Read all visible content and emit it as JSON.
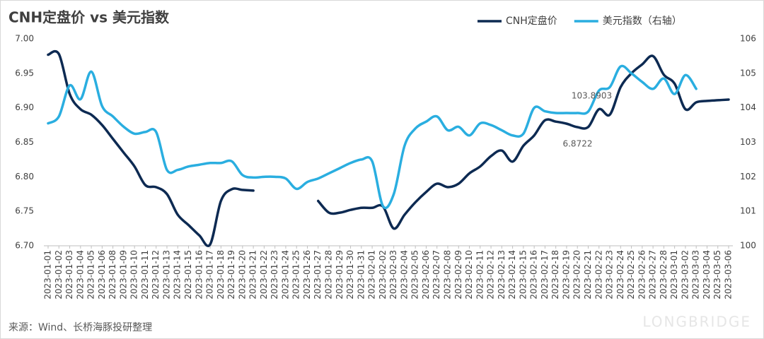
{
  "chart_data": {
    "type": "line",
    "title": "CNH定盘价 vs 美元指数",
    "source": "来源：Wind、长桥海豚投研整理",
    "watermark": "LONGBRIDGE",
    "categories": [
      "2023-01-01",
      "2023-01-02",
      "2023-01-03",
      "2023-01-04",
      "2023-01-05",
      "2023-01-06",
      "2023-01-08",
      "2023-01-09",
      "2023-01-10",
      "2023-01-11",
      "2023-01-12",
      "2023-01-13",
      "2023-01-14",
      "2023-01-15",
      "2023-01-16",
      "2023-01-17",
      "2023-01-18",
      "2023-01-19",
      "2023-01-20",
      "2023-01-21",
      "2023-01-22",
      "2023-01-23",
      "2023-01-24",
      "2023-01-25",
      "2023-01-26",
      "2023-01-27",
      "2023-01-28",
      "2023-01-29",
      "2023-01-30",
      "2023-01-31",
      "2023-02-01",
      "2023-02-02",
      "2023-02-03",
      "2023-02-04",
      "2023-02-05",
      "2023-02-06",
      "2023-02-07",
      "2023-02-08",
      "2023-02-09",
      "2023-02-10",
      "2023-02-11",
      "2023-02-12",
      "2023-02-13",
      "2023-02-14",
      "2023-02-15",
      "2023-02-16",
      "2023-02-17",
      "2023-02-18",
      "2023-02-19",
      "2023-02-20",
      "2023-02-21",
      "2023-02-22",
      "2023-02-23",
      "2023-02-24",
      "2023-02-25",
      "2023-02-26",
      "2023-02-27",
      "2023-02-28",
      "2023-03-01",
      "2023-03-02",
      "2023-03-03",
      "2023-03-04",
      "2023-03-05",
      "2023-03-06"
    ],
    "series": [
      {
        "name": "CNH定盘价",
        "color": "#0d2a52",
        "labels_at": [
          50
        ],
        "values": [
          6.977,
          6.978,
          6.92,
          6.898,
          6.89,
          6.875,
          6.855,
          6.835,
          6.815,
          6.788,
          6.785,
          6.775,
          6.745,
          6.73,
          6.715,
          6.702,
          6.765,
          6.782,
          6.781,
          6.78,
          null,
          null,
          null,
          null,
          null,
          6.765,
          6.748,
          6.748,
          6.752,
          6.755,
          6.755,
          6.757,
          6.725,
          6.745,
          6.763,
          6.778,
          6.79,
          6.785,
          6.79,
          6.805,
          6.815,
          6.83,
          6.838,
          6.822,
          6.845,
          6.86,
          6.882,
          6.88,
          6.877,
          6.872,
          6.8722,
          6.898,
          6.89,
          6.93,
          6.95,
          6.963,
          6.975,
          6.948,
          6.935,
          6.898,
          6.908,
          6.91,
          6.911,
          6.912
        ]
      },
      {
        "name": "美元指数（右轴）",
        "color": "#2aaee0",
        "axis": "y2",
        "labels_at": [
          50
        ],
        "values": [
          103.55,
          103.75,
          104.65,
          104.25,
          105.05,
          104.05,
          103.75,
          103.45,
          103.25,
          103.3,
          103.3,
          102.2,
          102.2,
          102.3,
          102.35,
          102.4,
          102.4,
          102.45,
          102.05,
          101.98,
          102.0,
          102.0,
          101.95,
          101.65,
          101.85,
          101.95,
          102.1,
          102.25,
          102.4,
          102.5,
          102.45,
          101.15,
          101.5,
          102.9,
          103.4,
          103.6,
          103.75,
          103.35,
          103.45,
          103.2,
          103.55,
          103.5,
          103.35,
          103.2,
          103.25,
          104.0,
          103.9,
          103.85,
          103.85,
          103.85,
          103.8903,
          104.5,
          104.6,
          105.2,
          105.0,
          104.75,
          104.55,
          104.85,
          104.4,
          104.95,
          104.55,
          null,
          null,
          null
        ]
      }
    ],
    "ylim": [
      6.7,
      7.0
    ],
    "yticks": [
      {
        "value": 6.7,
        "label": "6.70"
      },
      {
        "value": 6.75,
        "label": "6.75"
      },
      {
        "value": 6.8,
        "label": "6.80"
      },
      {
        "value": 6.85,
        "label": "6.85"
      },
      {
        "value": 6.9,
        "label": "6.90"
      },
      {
        "value": 6.95,
        "label": "6.95"
      },
      {
        "value": 7.0,
        "label": "7.00"
      }
    ],
    "y2lim": [
      100,
      106
    ],
    "y2ticks": [
      100,
      101,
      102,
      103,
      104,
      105,
      106
    ],
    "legend": "top-right"
  }
}
